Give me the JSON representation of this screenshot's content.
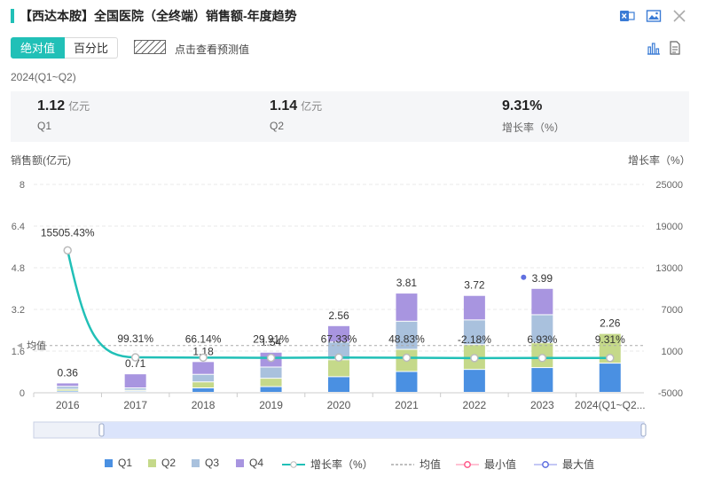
{
  "header": {
    "title": "【西达本胺】全国医院（全终端）销售额-年度趋势"
  },
  "toolbar": {
    "tab_active": "绝对值",
    "tab_inactive": "百分比",
    "forecast_label": "点击查看预测值"
  },
  "period": "2024(Q1~Q2)",
  "summary": [
    {
      "value": "1.12",
      "unit": "亿元",
      "label": "Q1"
    },
    {
      "value": "1.14",
      "unit": "亿元",
      "label": "Q2"
    },
    {
      "value": "9.31%",
      "unit": "",
      "label": "增长率（%）"
    }
  ],
  "colors": {
    "q1": "#4a90e2",
    "q2": "#c5d98a",
    "q3": "#a9c1dd",
    "q4": "#a895e0",
    "growth": "#21c0b7",
    "min": "#ff5a8a",
    "max": "#6070e0"
  },
  "chart_data": {
    "type": "bar",
    "ylabel": "销售额(亿元)",
    "y2label": "增长率（%）",
    "ylim": [
      0,
      8
    ],
    "yticks": [
      "0",
      "1.6",
      "3.2",
      "4.8",
      "6.4",
      "8"
    ],
    "y2lim": [
      -5000,
      25000
    ],
    "y2ticks": [
      "-5000",
      "1000",
      "7000",
      "13000",
      "19000",
      "25000"
    ],
    "categories": [
      "2016",
      "2017",
      "2018",
      "2019",
      "2020",
      "2021",
      "2022",
      "2023",
      "2024(Q1~Q2..."
    ],
    "series": [
      {
        "name": "Q1",
        "values": [
          0.05,
          0.04,
          0.17,
          0.22,
          0.6,
          0.8,
          0.88,
          0.95,
          1.12
        ]
      },
      {
        "name": "Q2",
        "values": [
          0.07,
          0.04,
          0.23,
          0.32,
          0.65,
          0.85,
          0.95,
          0.95,
          1.14
        ]
      },
      {
        "name": "Q3",
        "values": [
          0.11,
          0.09,
          0.29,
          0.43,
          0.68,
          1.08,
          0.95,
          1.08,
          0
        ]
      },
      {
        "name": "Q4",
        "values": [
          0.13,
          0.54,
          0.49,
          0.57,
          0.63,
          1.08,
          0.94,
          1.01,
          0
        ]
      }
    ],
    "totals": [
      0.36,
      0.71,
      1.18,
      1.54,
      2.56,
      3.81,
      3.72,
      3.99,
      2.26
    ],
    "total_labels": [
      "0.36",
      "0.71",
      "1.18",
      "1.54",
      "2.56",
      "3.81",
      "3.72",
      "3.99",
      "2.26"
    ],
    "growth_rate": [
      15505.43,
      99.31,
      66.14,
      29.91,
      67.33,
      48.83,
      -2.18,
      6.93,
      9.31
    ],
    "growth_labels": [
      "15505.43%",
      "99.31%",
      "66.14%",
      "29.91%",
      "67.33%",
      "48.83%",
      "-2.18%",
      "6.93%",
      "9.31%"
    ],
    "average_label": "均值",
    "average_value": 1800,
    "legend": [
      "Q1",
      "Q2",
      "Q3",
      "Q4",
      "增长率（%）",
      "均值",
      "最小值",
      "最大值"
    ],
    "legend_position": "bottom"
  }
}
